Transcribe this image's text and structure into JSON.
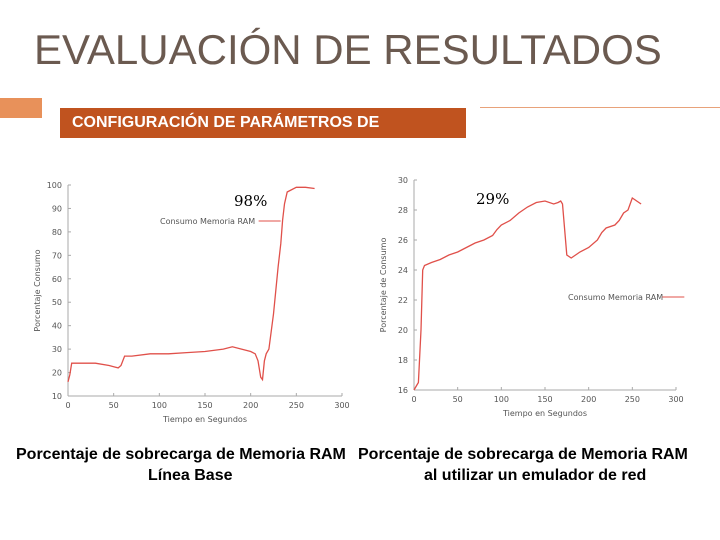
{
  "slide": {
    "title": "EVALUACIÓN DE RESULTADOS",
    "banner": "CONFIGURACIÓN DE PARÁMETROS DE"
  },
  "colors": {
    "line": "#e0504a",
    "banner": "#c0531f",
    "accent": "#e8915a",
    "title": "#6b5a50"
  },
  "chart_data": [
    {
      "type": "line",
      "legend": "Consumo Memoria RAM",
      "legend_position": "top-center",
      "xlabel": "Tiempo en Segundos",
      "ylabel": "Porcentaje Consumo",
      "xlim": [
        0,
        300
      ],
      "ylim": [
        10,
        100
      ],
      "xticks": [
        0,
        50,
        100,
        150,
        200,
        250,
        300
      ],
      "yticks": [
        10,
        20,
        30,
        40,
        50,
        60,
        70,
        80,
        90,
        100
      ],
      "callout": "98%",
      "caption_line1": "Porcentaje de sobrecarga de Memoria RAM",
      "caption_line2": "Línea Base",
      "x": [
        0,
        2,
        4,
        10,
        30,
        45,
        50,
        55,
        58,
        62,
        70,
        90,
        110,
        130,
        150,
        170,
        180,
        190,
        200,
        205,
        208,
        211,
        213,
        215,
        217,
        220,
        225,
        230,
        233,
        235,
        237,
        240,
        250,
        260,
        270
      ],
      "y": [
        16,
        19,
        24,
        24,
        24,
        23,
        22.5,
        22,
        23,
        27,
        27,
        28,
        28,
        28.5,
        29,
        30,
        31,
        30,
        29,
        28,
        25,
        18,
        17,
        25,
        28,
        30,
        45,
        65,
        75,
        85,
        92,
        97,
        99,
        99,
        98.5
      ]
    },
    {
      "type": "line",
      "legend": "Consumo Memoria RAM",
      "legend_position": "center-right",
      "xlabel": "Tiempo en Segundos",
      "ylabel": "Porcentaje de Consumo",
      "xlim": [
        0,
        300
      ],
      "ylim": [
        16,
        30
      ],
      "xticks": [
        0,
        50,
        100,
        150,
        200,
        250,
        300
      ],
      "yticks": [
        16,
        18,
        20,
        22,
        24,
        26,
        28,
        30
      ],
      "callout": "29%",
      "caption_line1": "Porcentaje de sobrecarga de Memoria RAM",
      "caption_line2": "al utilizar un emulador de red",
      "x": [
        0,
        3,
        5,
        8,
        10,
        12,
        20,
        30,
        40,
        50,
        60,
        70,
        80,
        90,
        95,
        100,
        110,
        120,
        130,
        140,
        150,
        160,
        165,
        168,
        170,
        175,
        180,
        185,
        190,
        200,
        210,
        215,
        220,
        230,
        235,
        240,
        245,
        250,
        255,
        260
      ],
      "y": [
        16,
        16.3,
        16.5,
        20,
        24,
        24.3,
        24.5,
        24.7,
        25,
        25.2,
        25.5,
        25.8,
        26,
        26.3,
        26.7,
        27,
        27.3,
        27.8,
        28.2,
        28.5,
        28.6,
        28.4,
        28.5,
        28.6,
        28.4,
        25,
        24.8,
        25,
        25.2,
        25.5,
        26,
        26.5,
        26.8,
        27,
        27.3,
        27.8,
        28,
        28.8,
        28.6,
        28.4
      ]
    }
  ]
}
